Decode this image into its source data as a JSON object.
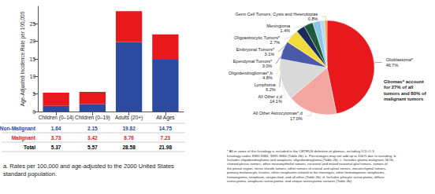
{
  "chart_data": [
    {
      "type": "bar",
      "y_label": "Age-Adjusted Incidence Rate per 100,000",
      "categories": [
        "Children (0–14)",
        "Children (0–19)",
        "Adults (20+)",
        "All Ages"
      ],
      "series": [
        {
          "name": "Non-Malignant",
          "color": "#2b4aa0",
          "values": [
            1.64,
            2.15,
            19.82,
            14.75
          ]
        },
        {
          "name": "Malignant",
          "color": "#e8191c",
          "values": [
            3.73,
            3.42,
            8.76,
            7.23
          ]
        }
      ],
      "stacked": true,
      "ylim": [
        0,
        30
      ],
      "yticks": [
        0,
        5,
        10,
        15,
        20,
        25
      ],
      "grid": false,
      "data_labels": false,
      "table": {
        "rows": [
          "Non-Malignant",
          "Malignant",
          "Total"
        ],
        "totals": [
          5.37,
          5.57,
          28.58,
          21.98
        ]
      },
      "note": "a. Rates per 100,000 and age-adjusted to the 2000 United States standard population."
    },
    {
      "type": "pie",
      "categories": [
        "Glioblastoma*",
        "All Other Astrocytomas*,d",
        "All Other c,d",
        "Lymphoma",
        "Oligodendrogliomas*,b",
        "Ependymal Tumors*",
        "Embryonal Tumors*",
        "Oligoastrocytic Tumors*",
        "Meningioma",
        "Germ Cell Tumors, Cysts and Heterotopias"
      ],
      "values": [
        46.7,
        17.0,
        14.1,
        6.2,
        4.8,
        3.0,
        3.1,
        2.7,
        1.4,
        0.8
      ],
      "value_labels": [
        "46.7%",
        "17.0%",
        "14.1%",
        "6.2%",
        "4.8%",
        "3.0%",
        "3.1%",
        "2.7%",
        "1.4%",
        "0.8%"
      ],
      "colors": [
        "#e8191c",
        "#f4a6a0",
        "#d9d9d9",
        "#4b5aa8",
        "#f2dc3c",
        "#1c2a5c",
        "#1f5a3a",
        "#8ec6e6",
        "#b7d7ef",
        "#f0a040"
      ],
      "data_labels": true,
      "annotation": "Gliomas* account for 27% of all tumors and 80% of malignant tumors",
      "note": "* All or some of this histology is included in the CBTRUS definition of gliomas, including ICD-O-3 histology codes 9380-9384, 9391-9460 (Table 2b). a. Percentages may not add up to 100% due to rounding. b. Includes oligodendroglioma and anaplastic oligodendroglioma (Table 2b). c. Includes glioma malignant, NOS, choroid plexus tumors, other neuroepithelial tumors, neuronal and mixed neuronal-glial tumors, tumors of the pineal region, nerve sheath tumors, other tumors of cranial and spinal nerves, mesenchymal tumors, primary melanocytic lesions, other neoplasms related to the meninges, other hematopoietic neoplasms, hemangioma, neoplasm, unspecified, and all other (Table 2b). d. Includes pilocytic astrocytoma, diffuse astrocytoma, anaplastic astrocytoma, and unique astrocytoma variants (Table 2b)."
    }
  ]
}
